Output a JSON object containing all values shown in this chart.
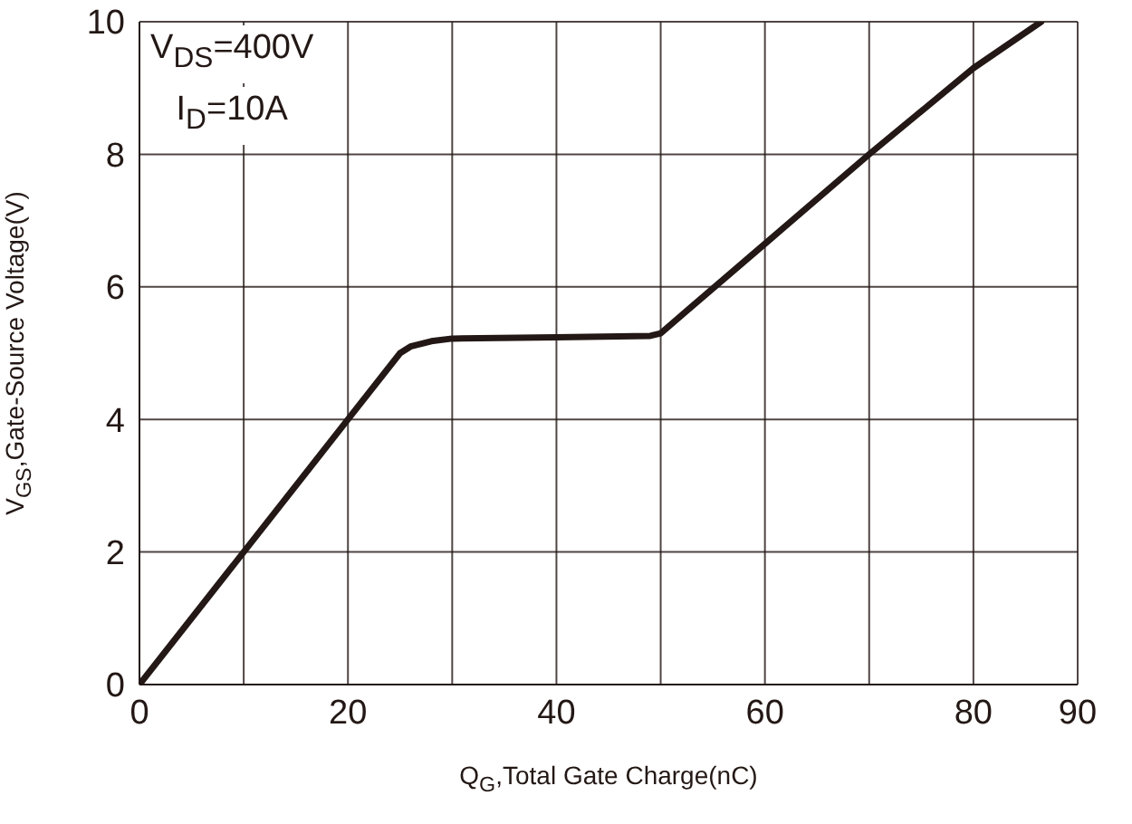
{
  "chart_data": {
    "type": "line",
    "xlabel": "Q$_{G}$,Total Gate Charge(nC)",
    "ylabel": "V$_{GS}$,Gate-Source Voltage(V)",
    "annotations": [
      "V$_{DS}$=400V",
      "I$_{D}$=10A"
    ],
    "x": [
      0,
      10,
      20,
      25,
      26,
      28,
      30,
      40,
      49,
      50,
      60,
      70,
      80,
      86.5
    ],
    "series": [
      {
        "color": "#231815",
        "values": [
          0,
          2,
          4,
          5,
          5.1,
          5.18,
          5.22,
          5.24,
          5.26,
          5.3,
          6.65,
          8,
          9.3,
          10
        ]
      }
    ],
    "xlim": [
      0,
      90
    ],
    "xticks": [
      0,
      {
        "value": 10,
        "label": null
      },
      20,
      {
        "value": 30,
        "label": null
      },
      40,
      {
        "value": 50,
        "label": null
      },
      60,
      {
        "value": 70,
        "label": null
      },
      80,
      90
    ],
    "ylim": [
      0,
      10
    ],
    "yticks": [
      0,
      2,
      4,
      6,
      8,
      10
    ],
    "grid": true,
    "line_style": "solid"
  }
}
